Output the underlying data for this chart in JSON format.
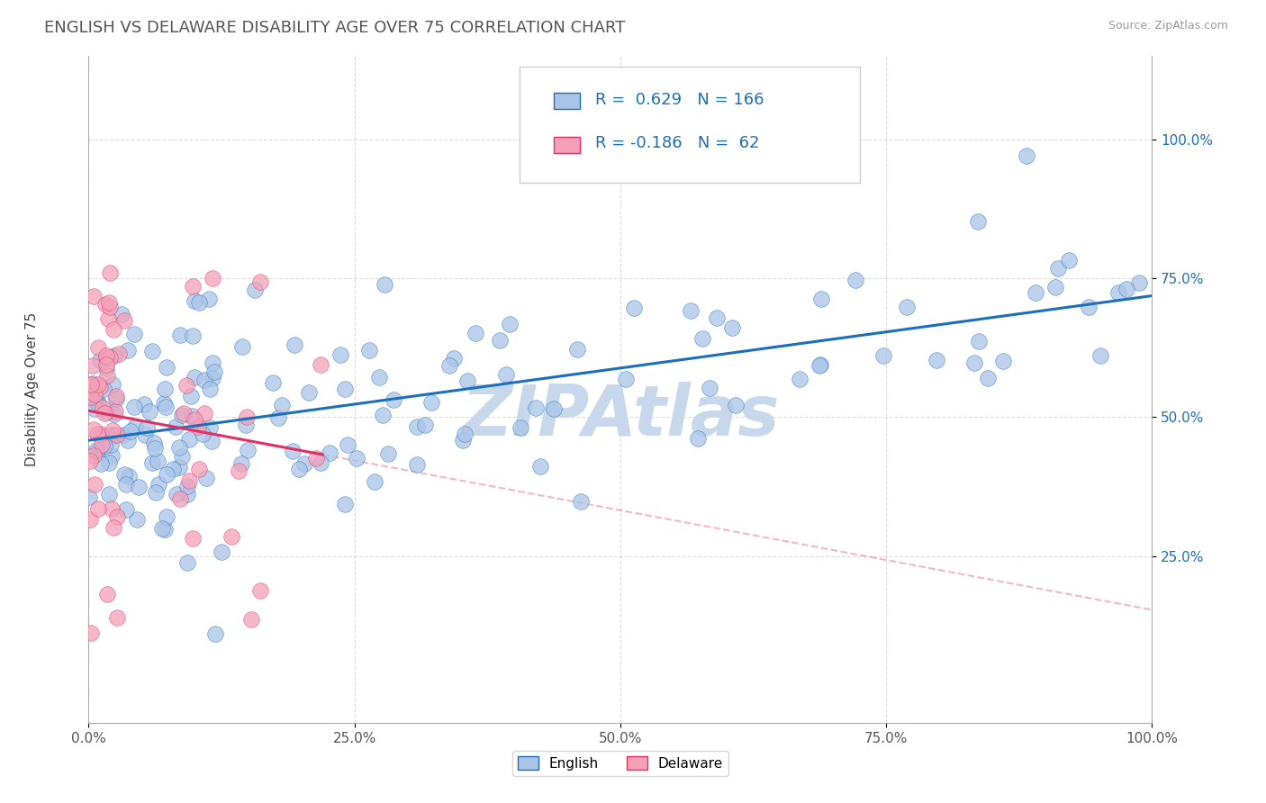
{
  "title": "ENGLISH VS DELAWARE DISABILITY AGE OVER 75 CORRELATION CHART",
  "source": "Source: ZipAtlas.com",
  "ylabel": "Disability Age Over 75",
  "xlim": [
    0.0,
    1.0
  ],
  "ylim": [
    -0.05,
    1.15
  ],
  "xticks": [
    0.0,
    0.25,
    0.5,
    0.75,
    1.0
  ],
  "xticklabels": [
    "0.0%",
    "25.0%",
    "50.0%",
    "75.0%",
    "100.0%"
  ],
  "yticks": [
    0.25,
    0.5,
    0.75,
    1.0
  ],
  "yticklabels": [
    "25.0%",
    "50.0%",
    "75.0%",
    "100.0%"
  ],
  "english_R": 0.629,
  "english_N": 166,
  "delaware_R": -0.186,
  "delaware_N": 62,
  "english_color": "#aac4e8",
  "delaware_color": "#f4a0b8",
  "english_line_color": "#1a6fbd",
  "delaware_line_color": "#e03060",
  "watermark": "ZIPAtlas",
  "watermark_color": "#c8d8ec",
  "background_color": "#ffffff",
  "grid_color": "#cccccc",
  "title_color": "#555555",
  "legend_text_color": "#1a6fbd",
  "tick_label_color": "#1a6fbd"
}
